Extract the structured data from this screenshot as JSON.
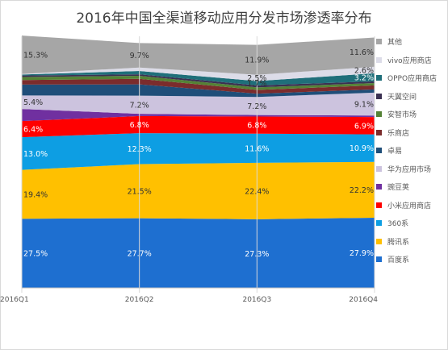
{
  "chart_data": {
    "type": "area",
    "stacked": true,
    "title": "2016年中国全渠道移动应用分发市场渗透率分布",
    "categories": [
      "2016Q1",
      "2016Q2",
      "2016Q3",
      "2016Q4"
    ],
    "ylim": [
      0,
      100
    ],
    "grid": false,
    "legend_position": "right",
    "series": [
      {
        "name": "百度系",
        "color": "#1e6fd0",
        "values": [
          27.5,
          27.7,
          27.3,
          27.9
        ],
        "labels": [
          "27.5%",
          "27.7%",
          "27.3%",
          "27.9%"
        ]
      },
      {
        "name": "腾讯系",
        "color": "#ffc000",
        "values": [
          19.4,
          21.5,
          22.4,
          22.2
        ],
        "labels": [
          "19.4%",
          "21.5%",
          "22.4%",
          "22.2%"
        ]
      },
      {
        "name": "360系",
        "color": "#0d9ee3",
        "values": [
          13.0,
          12.3,
          11.6,
          10.9
        ],
        "labels": [
          "13.0%",
          "12.3%",
          "11.6%",
          "10.9%"
        ]
      },
      {
        "name": "小米应用商店",
        "color": "#ff0000",
        "values": [
          6.4,
          6.8,
          6.8,
          6.9
        ],
        "labels": [
          "6.4%",
          "6.8%",
          "6.8%",
          "6.9%"
        ]
      },
      {
        "name": "豌豆荚",
        "color": "#7030a0",
        "values": [
          4.8,
          0.9,
          0.6,
          0.6
        ],
        "labels": [
          "",
          "",
          "",
          ""
        ]
      },
      {
        "name": "华为应用市场",
        "color": "#ccc3de",
        "values": [
          5.4,
          7.2,
          7.2,
          9.1
        ],
        "labels": [
          "5.4%",
          "7.2%",
          "7.2%",
          "9.1%"
        ]
      },
      {
        "name": "卓易",
        "color": "#1f4e79",
        "values": [
          4.3,
          4.5,
          1.3,
          1.3
        ],
        "labels": [
          "",
          "",
          "",
          ""
        ]
      },
      {
        "name": "乐商店",
        "color": "#7b2c2c",
        "values": [
          1.8,
          2.2,
          1.5,
          1.6
        ],
        "labels": [
          "",
          "",
          "",
          ""
        ]
      },
      {
        "name": "安智市场",
        "color": "#548235",
        "values": [
          1.2,
          1.2,
          1.0,
          0.9
        ],
        "labels": [
          "",
          "",
          "",
          ""
        ]
      },
      {
        "name": "天翼空间",
        "color": "#3b3052",
        "values": [
          0.6,
          0.6,
          0.8,
          0.7
        ],
        "labels": [
          "",
          "",
          "",
          ""
        ]
      },
      {
        "name": "OPPO应用商店",
        "color": "#1f6f7a",
        "values": [
          0.4,
          1.3,
          1.7,
          3.2
        ],
        "labels": [
          "",
          "",
          "1.7%",
          "3.2%"
        ]
      },
      {
        "name": "vivo应用商店",
        "color": "#dcdce8",
        "values": [
          0.2,
          1.4,
          2.5,
          2.6
        ],
        "labels": [
          "",
          "",
          "2.5%",
          "2.6%"
        ]
      },
      {
        "name": "其他",
        "color": "#a6a6a6",
        "values": [
          15.3,
          9.7,
          11.9,
          11.6
        ],
        "labels": [
          "15.3%",
          "9.7%",
          "11.9%",
          "11.6%"
        ]
      }
    ]
  },
  "legend_order": [
    "其他",
    "vivo应用商店",
    "OPPO应用商店",
    "天翼空间",
    "安智市场",
    "乐商店",
    "卓易",
    "华为应用市场",
    "豌豆荚",
    "小米应用商店",
    "360系",
    "腾讯系",
    "百度系"
  ]
}
